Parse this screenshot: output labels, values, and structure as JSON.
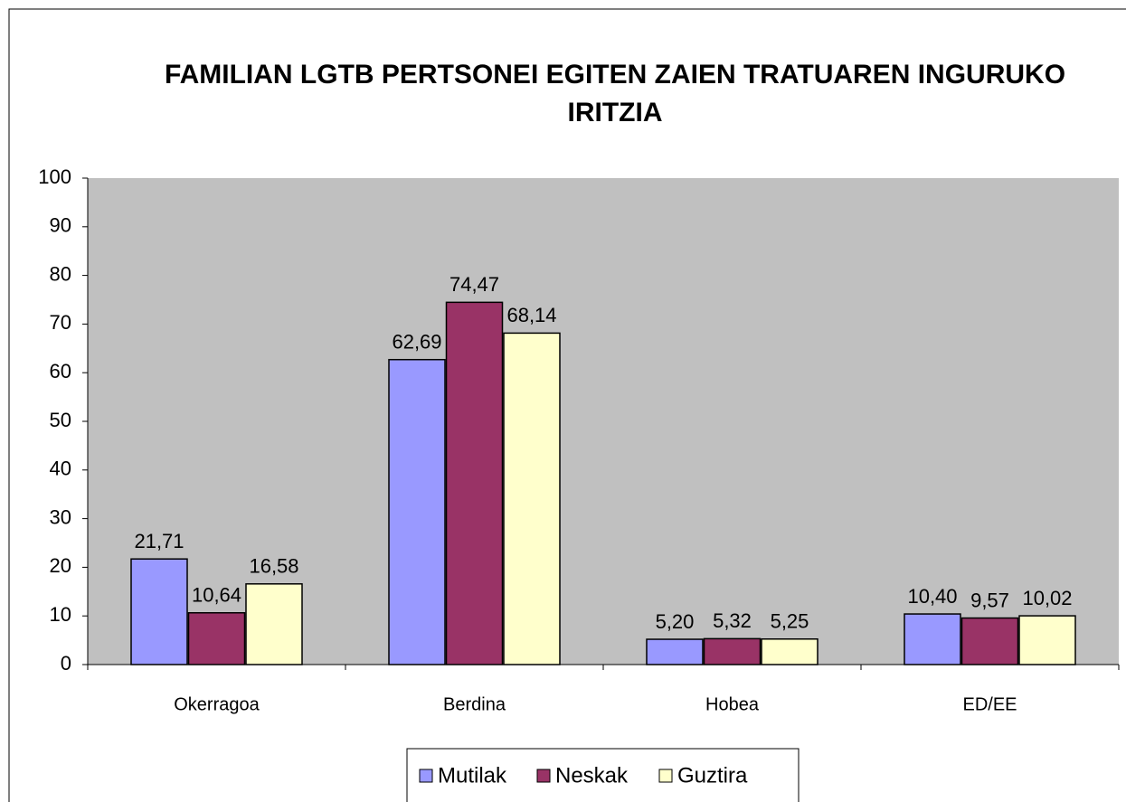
{
  "chart_data": {
    "type": "bar",
    "title": "FAMILIAN LGTB PERTSONEI EGITEN ZAIEN TRATUAREN INGURUKO IRITZIA",
    "categories": [
      "Okerragoa",
      "Berdina",
      "Hobea",
      "ED/EE"
    ],
    "series": [
      {
        "name": "Mutilak",
        "color": "#9999ff",
        "values": [
          21.71,
          62.69,
          5.2,
          10.4
        ],
        "value_labels": [
          "21,71",
          "62,69",
          "5,20",
          "10,40"
        ]
      },
      {
        "name": "Neskak",
        "color": "#993366",
        "values": [
          10.64,
          74.47,
          5.32,
          9.57
        ],
        "value_labels": [
          "10,64",
          "74,47",
          "5,32",
          "9,57"
        ]
      },
      {
        "name": "Guztira",
        "color": "#ffffcc",
        "values": [
          16.58,
          68.14,
          5.25,
          10.02
        ],
        "value_labels": [
          "16,58",
          "68,14",
          "5,25",
          "10,02"
        ]
      }
    ],
    "ylim": [
      0,
      100
    ],
    "yticks": [
      0,
      10,
      20,
      30,
      40,
      50,
      60,
      70,
      80,
      90,
      100
    ],
    "grid": false,
    "legend": "bottom",
    "plot_background": "#c0c0c0"
  }
}
